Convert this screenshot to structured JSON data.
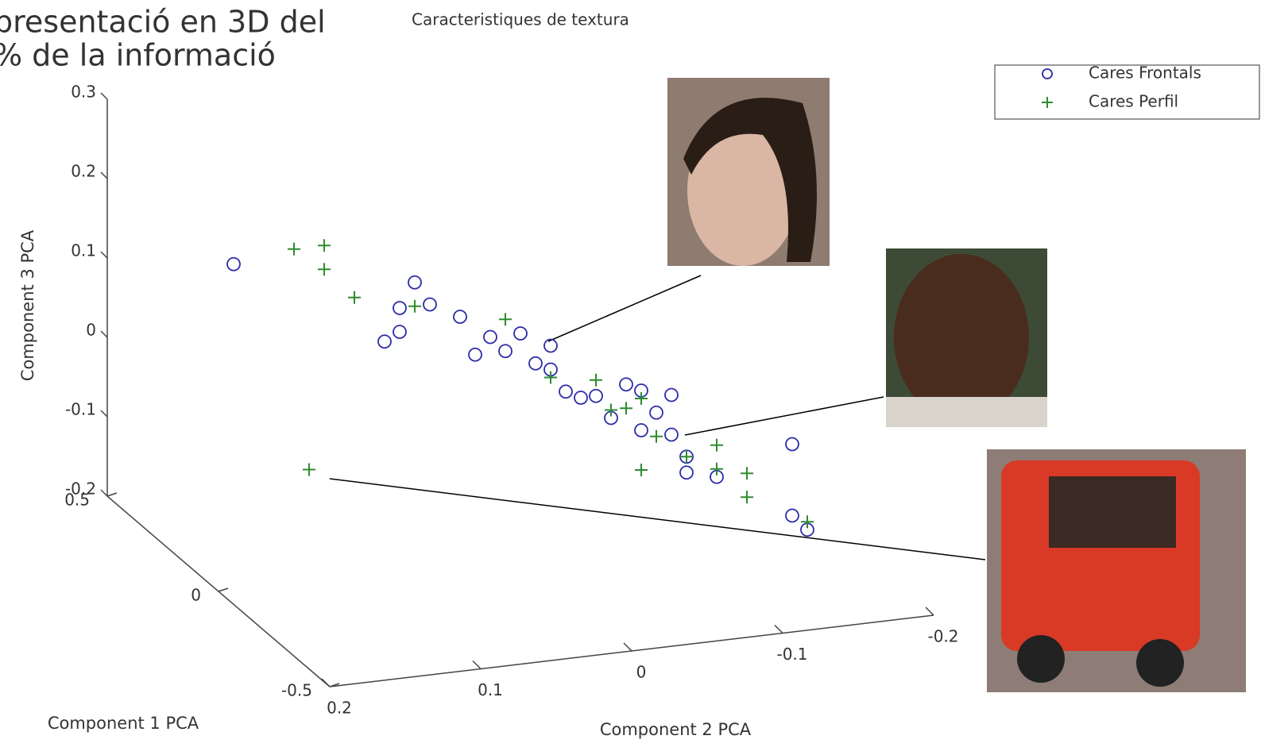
{
  "slide_text": [
    "presentació en 3D del",
    "% de la informació"
  ],
  "chart_data": {
    "type": "scatter3d",
    "title": "Caracteristiques de textura",
    "xlabel": "Component 2 PCA",
    "ylabel": "Component 1 PCA",
    "zlabel": "Component 3 PCA",
    "xlim": [
      -0.2,
      0.2
    ],
    "ylim": [
      -0.5,
      0.5
    ],
    "zlim": [
      -0.2,
      0.3
    ],
    "xticks": [
      0.2,
      0.1,
      0,
      -0.1,
      -0.2
    ],
    "yticks": [
      0.5,
      0,
      -0.5
    ],
    "zticks": [
      0.3,
      0.2,
      0.1,
      0,
      -0.1,
      -0.2
    ],
    "legend": "upper right",
    "series": [
      {
        "name": "Cares Frontals",
        "color": "#2b2ba8",
        "marker": "circle",
        "x": [
          0.19,
          0.07,
          0.08,
          0.09,
          0.08,
          0.06,
          0.04,
          0.02,
          0.01,
          -0.01,
          -0.02,
          -0.03,
          -0.05,
          -0.07,
          -0.08,
          -0.1,
          -0.06,
          -0.08,
          -0.1,
          -0.11,
          -0.13,
          -0.11,
          -0.18,
          -0.18,
          -0.19,
          0.0,
          0.03,
          -0.02,
          -0.04,
          -0.09
        ],
        "y": [
          0,
          0,
          0,
          0,
          0,
          0,
          0,
          0,
          0,
          0,
          0,
          0,
          0,
          0,
          0,
          0,
          0,
          0,
          0,
          0,
          0,
          0,
          0,
          0,
          0,
          0,
          0,
          0,
          0,
          0
        ],
        "z": [
          0.21,
          0.16,
          0.13,
          0.09,
          0.1,
          0.13,
          0.11,
          0.08,
          0.06,
          0.04,
          0.03,
          0.0,
          -0.01,
          0.0,
          -0.01,
          -0.02,
          -0.04,
          -0.06,
          -0.07,
          -0.1,
          -0.13,
          -0.12,
          -0.1,
          -0.19,
          -0.21,
          0.08,
          0.06,
          0.06,
          -0.01,
          -0.04
        ]
      },
      {
        "name": "Cares Perfil",
        "color": "#2e8b2e",
        "marker": "plus",
        "x": [
          0.15,
          0.13,
          0.13,
          0.11,
          0.07,
          0.01,
          -0.02,
          -0.05,
          -0.08,
          -0.09,
          -0.08,
          -0.11,
          -0.13,
          -0.13,
          -0.15,
          -0.15,
          0.14,
          -0.19,
          -0.07,
          -0.06
        ],
        "y": [
          0,
          0,
          0,
          0,
          0,
          0,
          0,
          0,
          0,
          0,
          0,
          0,
          0,
          0,
          0,
          0,
          0,
          0,
          0,
          0
        ],
        "z": [
          0.22,
          0.22,
          0.19,
          0.15,
          0.13,
          0.1,
          0.02,
          0.01,
          -0.02,
          -0.07,
          -0.11,
          -0.1,
          -0.12,
          -0.09,
          -0.13,
          -0.16,
          -0.06,
          -0.2,
          -0.03,
          -0.03
        ]
      }
    ]
  }
}
